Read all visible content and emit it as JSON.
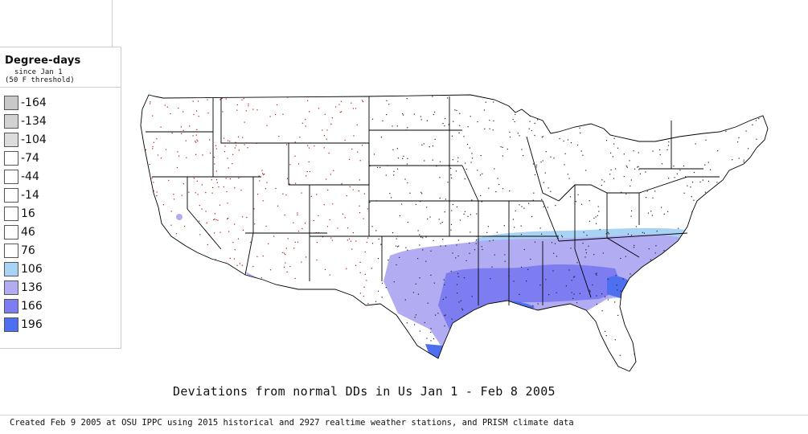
{
  "legend": {
    "title": "Degree-days",
    "subtitle_line1": "since Jan 1",
    "subtitle_line2": "(50 F threshold)",
    "items": [
      {
        "label": "-164",
        "color": "#c8c8c8"
      },
      {
        "label": "-134",
        "color": "#d2d2d2"
      },
      {
        "label": "-104",
        "color": "#dcdcdc"
      },
      {
        "label": "-74",
        "color": "#ffffff"
      },
      {
        "label": "-44",
        "color": "#ffffff"
      },
      {
        "label": "-14",
        "color": "#ffffff"
      },
      {
        "label": "16",
        "color": "#ffffff"
      },
      {
        "label": "46",
        "color": "#ffffff"
      },
      {
        "label": "76",
        "color": "#ffffff"
      },
      {
        "label": "106",
        "color": "#a9d3f4"
      },
      {
        "label": "136",
        "color": "#b2adf2"
      },
      {
        "label": "166",
        "color": "#7d7cf0"
      },
      {
        "label": "196",
        "color": "#4d6ff0"
      }
    ]
  },
  "map": {
    "caption": "Deviations from normal DDs in Us Jan 1 - Feb 8 2005",
    "station_dot_colors": {
      "west": "#b01616",
      "east": "#202020"
    }
  },
  "footer": {
    "text": "Created Feb 9 2005 at OSU IPPC using 2015 historical and 2927 realtime weather stations, and PRISM climate data"
  }
}
